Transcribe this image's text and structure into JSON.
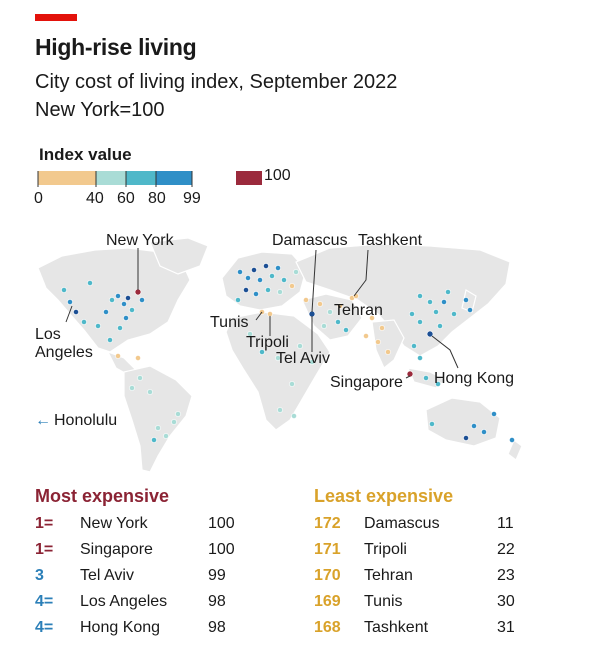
{
  "title": "High-rise living",
  "subtitle": "City cost of living index, September 2022",
  "subtitle_note": "New York=100",
  "legend": {
    "title": "Index value",
    "ticks": [
      "0",
      "40",
      "60",
      "80",
      "99"
    ],
    "max_label": "100",
    "colors": [
      "#f2c98e",
      "#a9dcd6",
      "#4fb8c9",
      "#2f8fc7",
      "#1c4f94"
    ],
    "max_color": "#9b2a3c"
  },
  "map_labels": {
    "new_york": "New York",
    "los_angeles_1": "Los",
    "los_angeles_2": "Angeles",
    "honolulu": "Honolulu",
    "damascus": "Damascus",
    "tashkent": "Tashkent",
    "tehran": "Tehran",
    "tunis": "Tunis",
    "tripoli": "Tripoli",
    "tel_aviv": "Tel Aviv",
    "singapore": "Singapore",
    "hong_kong": "Hong Kong"
  },
  "colors": {
    "most_expensive": "#8b2334",
    "least_expensive": "#d9a22a",
    "blue_rank": "#2b7fb8",
    "land": "#e6e6e6"
  },
  "chart_data": {
    "type": "table",
    "title": "High-rise living",
    "most_expensive": {
      "heading": "Most expensive",
      "rows": [
        {
          "rank": "1=",
          "city": "New York",
          "value": 100
        },
        {
          "rank": "1=",
          "city": "Singapore",
          "value": 100
        },
        {
          "rank": "3",
          "city": "Tel Aviv",
          "value": 99
        },
        {
          "rank": "4=",
          "city": "Los Angeles",
          "value": 98
        },
        {
          "rank": "4=",
          "city": "Hong Kong",
          "value": 98
        }
      ]
    },
    "least_expensive": {
      "heading": "Least expensive",
      "rows": [
        {
          "rank": "172",
          "city": "Damascus",
          "value": 11
        },
        {
          "rank": "171",
          "city": "Tripoli",
          "value": 22
        },
        {
          "rank": "170",
          "city": "Tehran",
          "value": 23
        },
        {
          "rank": "169",
          "city": "Tunis",
          "value": 30
        },
        {
          "rank": "168",
          "city": "Tashkent",
          "value": 31
        }
      ]
    }
  }
}
